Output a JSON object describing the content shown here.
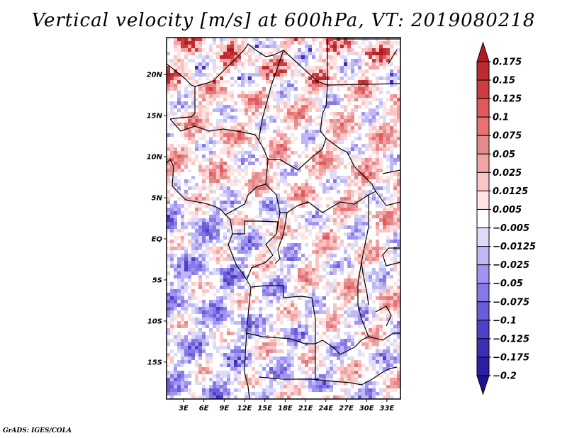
{
  "title": "Vertical velocity [m/s] at 600hPa, VT: 2019080218",
  "credit": "GrADS: IGES/COLA",
  "map": {
    "variable": "Vertical velocity",
    "units": "m/s",
    "level": "600hPa",
    "valid_time": "2019080218",
    "lat_ticks": [
      "20N",
      "15N",
      "10N",
      "5N",
      "EQ",
      "5S",
      "10S",
      "15S"
    ],
    "lat_values": [
      20,
      15,
      10,
      5,
      0,
      -5,
      -10,
      -15
    ],
    "lon_ticks": [
      "3E",
      "6E",
      "9E",
      "12E",
      "15E",
      "18E",
      "21E",
      "24E",
      "27E",
      "30E",
      "33E"
    ],
    "lon_values": [
      3,
      6,
      9,
      12,
      15,
      18,
      21,
      24,
      27,
      30,
      33
    ],
    "lat_range": [
      -19.5,
      24.5
    ],
    "lon_range": [
      0.5,
      35
    ]
  },
  "colorbar": {
    "labels": [
      "0.175",
      "0.15",
      "0.125",
      "0.1",
      "0.075",
      "0.05",
      "0.025",
      "0.0125",
      "0.005",
      "−0.005",
      "−0.0125",
      "−0.025",
      "−0.05",
      "−0.075",
      "−0.1",
      "−0.125",
      "−0.175",
      "−0.2"
    ],
    "colors": [
      "#b01e22",
      "#be2b2f",
      "#cc3c40",
      "#e05a5c",
      "#e77274",
      "#e28a8c",
      "#f3a3a3",
      "#f9c6c6",
      "#fde3e3",
      "#ffffff",
      "#dcdcf8",
      "#bfb8f6",
      "#a093f2",
      "#8678e6",
      "#6b5cd8",
      "#4f40c8",
      "#3e2eb6",
      "#2d1ea4",
      "#1f0f94"
    ],
    "top_arrow_color": "#b01e22",
    "bottom_arrow_color": "#1f0f94"
  }
}
